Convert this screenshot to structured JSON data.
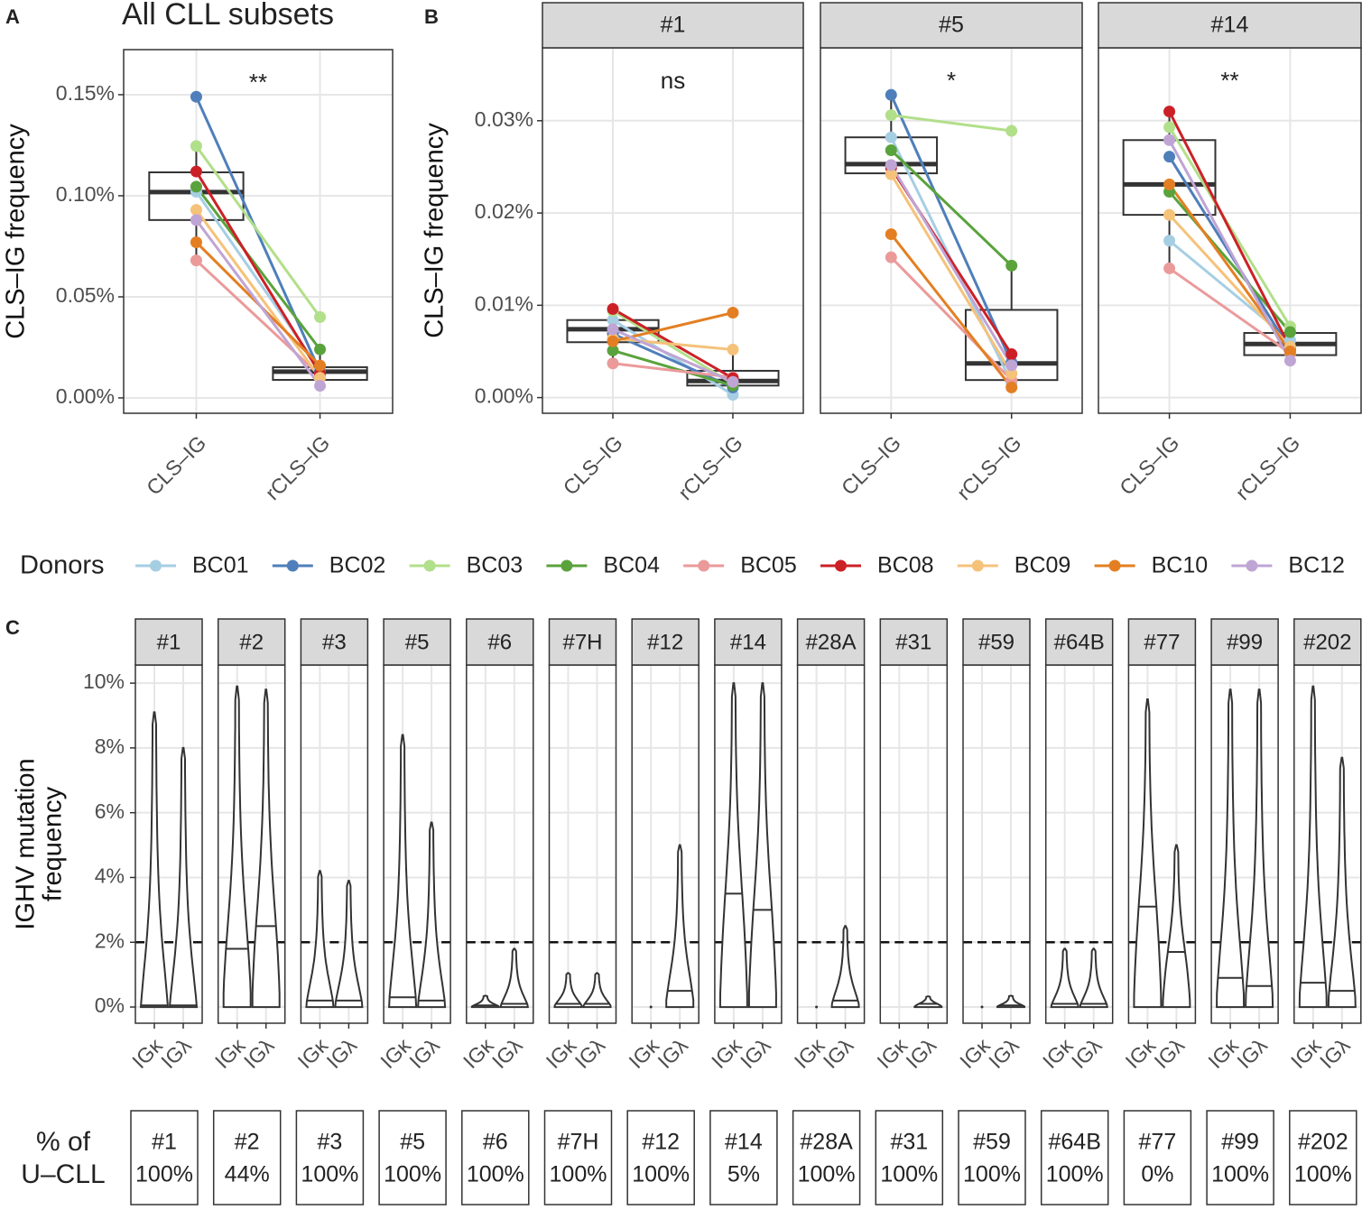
{
  "panel_labels": [
    "A",
    "B",
    "C"
  ],
  "legend": {
    "title": "Donors"
  },
  "chart_data": [
    {
      "type": "paired-box",
      "title": "All CLL subsets",
      "y_label": "CLS–IG frequency",
      "annotation": "**",
      "categories": [
        "CLS–IG",
        "rCLS–IG"
      ],
      "ylim": [
        -0.0076,
        0.1723
      ],
      "yticks": [
        {
          "value": 0,
          "label": "0.00%"
        },
        {
          "value": 0.05,
          "label": "0.05%"
        },
        {
          "value": 0.1,
          "label": "0.10%"
        },
        {
          "value": 0.15,
          "label": "0.15%"
        }
      ],
      "series": [
        {
          "name": "BC01",
          "color": "#a6cee3",
          "values": [
            0.102,
            0.014
          ]
        },
        {
          "name": "BC02",
          "color": "#4f7fba",
          "values": [
            0.149,
            0.013
          ]
        },
        {
          "name": "BC03",
          "color": "#b2df8a",
          "values": [
            0.1246,
            0.04
          ]
        },
        {
          "name": "BC04",
          "color": "#5aa33c",
          "values": [
            0.1045,
            0.024
          ]
        },
        {
          "name": "BC05",
          "color": "#eb9a9a",
          "values": [
            0.068,
            0.011
          ]
        },
        {
          "name": "BC08",
          "color": "#cc2027",
          "values": [
            0.112,
            0.012
          ]
        },
        {
          "name": "BC09",
          "color": "#f5c27a",
          "values": [
            0.093,
            0.01
          ]
        },
        {
          "name": "BC10",
          "color": "#e37f22",
          "values": [
            0.077,
            0.016
          ]
        },
        {
          "name": "BC12",
          "color": "#bfa5d4",
          "values": [
            0.088,
            0.006
          ]
        }
      ],
      "boxes": [
        {
          "whisker_low": 0.068,
          "q1": 0.088,
          "median": 0.1018,
          "q3": 0.1116,
          "whisker_high": 0.1246
        },
        {
          "whisker_low": 0.006,
          "q1": 0.0089,
          "median": 0.013,
          "q3": 0.0152,
          "whisker_high": 0.024
        }
      ]
    },
    {
      "type": "paired-box",
      "facet": "#1",
      "y_label": "CLS–IG frequency",
      "annotation": "ns",
      "categories": [
        "CLS–IG",
        "rCLS–IG"
      ],
      "ylim": [
        -0.0017,
        0.0379
      ],
      "yticks": [
        {
          "value": 0,
          "label": "0.00%"
        },
        {
          "value": 0.01,
          "label": "0.01%"
        },
        {
          "value": 0.02,
          "label": "0.02%"
        },
        {
          "value": 0.03,
          "label": "0.03%"
        }
      ],
      "series": [
        {
          "values": [
            0.0084,
            0.0003
          ]
        },
        {
          "values": [
            0.0069,
            0.0011
          ]
        },
        {
          "values": [
            0.0094,
            0.0015
          ]
        },
        {
          "values": [
            0.0051,
            0.0013
          ]
        },
        {
          "values": [
            0.0037,
            0.0022
          ]
        },
        {
          "values": [
            0.0096,
            0.0021
          ]
        },
        {
          "values": [
            0.0064,
            0.0052
          ]
        },
        {
          "values": [
            0.0061,
            0.0092
          ]
        },
        {
          "values": [
            0.0074,
            0.0017
          ]
        }
      ],
      "boxes": [
        {
          "whisker_low": 0.0037,
          "q1": 0.006,
          "median": 0.0074,
          "q3": 0.0084,
          "whisker_high": 0.0096
        },
        {
          "whisker_low": 0.0003,
          "q1": 0.0013,
          "median": 0.0018,
          "q3": 0.0029,
          "whisker_high": 0.0052
        }
      ]
    },
    {
      "type": "paired-box",
      "facet": "#5",
      "annotation": "*",
      "categories": [
        "CLS–IG",
        "rCLS–IG"
      ],
      "ylim": [
        -0.0017,
        0.0379
      ],
      "yticks": [
        0,
        0.01,
        0.02,
        0.03
      ],
      "series": [
        {
          "values": [
            0.0282,
            0.0016
          ]
        },
        {
          "values": [
            0.0328,
            0.0038
          ]
        },
        {
          "values": [
            0.0306,
            0.0289
          ]
        },
        {
          "values": [
            0.0268,
            0.0143
          ]
        },
        {
          "values": [
            0.0152,
            0.0019
          ]
        },
        {
          "values": [
            0.0249,
            0.0047
          ]
        },
        {
          "values": [
            0.0242,
            0.0026
          ]
        },
        {
          "values": [
            0.0177,
            0.0011
          ]
        },
        {
          "values": [
            0.0252,
            0.0035
          ]
        }
      ],
      "boxes": [
        {
          "whisker_low": 0.0242,
          "q1": 0.0243,
          "median": 0.0253,
          "q3": 0.0282,
          "whisker_high": 0.0328
        },
        {
          "whisker_low": 0.0011,
          "q1": 0.0019,
          "median": 0.0037,
          "q3": 0.0095,
          "whisker_high": 0.0143
        }
      ]
    },
    {
      "type": "paired-box",
      "facet": "#14",
      "annotation": "**",
      "categories": [
        "CLS–IG",
        "rCLS–IG"
      ],
      "ylim": [
        -0.0017,
        0.0379
      ],
      "yticks": [
        0,
        0.01,
        0.02,
        0.03
      ],
      "series": [
        {
          "values": [
            0.017,
            0.0062
          ]
        },
        {
          "values": [
            0.0261,
            0.0052
          ]
        },
        {
          "values": [
            0.0293,
            0.0077
          ]
        },
        {
          "values": [
            0.0223,
            0.0071
          ]
        },
        {
          "values": [
            0.014,
            0.0048
          ]
        },
        {
          "values": [
            0.031,
            0.0054
          ]
        },
        {
          "values": [
            0.0198,
            0.0055
          ]
        },
        {
          "values": [
            0.0231,
            0.005
          ]
        },
        {
          "values": [
            0.0279,
            0.004
          ]
        }
      ],
      "boxes": [
        {
          "whisker_low": 0.014,
          "q1": 0.0198,
          "median": 0.0231,
          "q3": 0.0279,
          "whisker_high": 0.031
        },
        {
          "whisker_low": 0.004,
          "q1": 0.0046,
          "median": 0.0058,
          "q3": 0.007,
          "whisker_high": 0.0077
        }
      ]
    },
    {
      "type": "violin",
      "y_label": [
        "IGHV mutation",
        "frequency"
      ],
      "categories": [
        "IGκ",
        "IGλ"
      ],
      "ylim": [
        -0.5,
        10.56
      ],
      "yticks": [
        {
          "value": 0,
          "label": "0%"
        },
        {
          "value": 2,
          "label": "2%"
        },
        {
          "value": 4,
          "label": "4%"
        },
        {
          "value": 6,
          "label": "6%"
        },
        {
          "value": 8,
          "label": "8%"
        },
        {
          "value": 10,
          "label": "10%"
        }
      ],
      "threshold": 2,
      "facets": [
        {
          "label": "#1",
          "violins": [
            {
              "max": 9.1,
              "median": 0.05
            },
            {
              "max": 8.0,
              "median": 0.05
            }
          ]
        },
        {
          "label": "#2",
          "violins": [
            {
              "max": 9.9,
              "median": 1.8
            },
            {
              "max": 9.8,
              "median": 2.5
            }
          ]
        },
        {
          "label": "#3",
          "violins": [
            {
              "max": 4.2,
              "median": 0.2
            },
            {
              "max": 3.9,
              "median": 0.2
            }
          ]
        },
        {
          "label": "#5",
          "violins": [
            {
              "max": 8.4,
              "median": 0.3
            },
            {
              "max": 5.7,
              "median": 0.2
            }
          ]
        },
        {
          "label": "#6",
          "violins": [
            {
              "max": 0.35,
              "median": 0.05
            },
            {
              "max": 1.8,
              "median": 0.1
            }
          ]
        },
        {
          "label": "#7H",
          "violins": [
            {
              "max": 1.05,
              "median": 0.1
            },
            {
              "max": 1.05,
              "median": 0.1
            }
          ]
        },
        {
          "label": "#12",
          "violins": [
            {
              "max": 0,
              "median": 0
            },
            {
              "max": 5.0,
              "median": 0.5
            }
          ]
        },
        {
          "label": "#14",
          "violins": [
            {
              "max": 10.0,
              "median": 3.5
            },
            {
              "max": 10.0,
              "median": 3.0
            }
          ]
        },
        {
          "label": "#28A",
          "violins": [
            {
              "max": 0,
              "median": 0
            },
            {
              "max": 2.5,
              "median": 0.2
            }
          ]
        },
        {
          "label": "#31",
          "violins": [
            null,
            {
              "max": 0.33,
              "median": 0.1
            }
          ]
        },
        {
          "label": "#59",
          "violins": [
            {
              "max": 0,
              "median": 0
            },
            {
              "max": 0.35,
              "median": 0.05
            }
          ]
        },
        {
          "label": "#64B",
          "violins": [
            {
              "max": 1.8,
              "median": 0.1
            },
            {
              "max": 1.8,
              "median": 0.1
            }
          ]
        },
        {
          "label": "#77",
          "violins": [
            {
              "max": 9.5,
              "median": 3.1
            },
            {
              "max": 5.0,
              "median": 1.7
            }
          ]
        },
        {
          "label": "#99",
          "violins": [
            {
              "max": 9.8,
              "median": 0.9
            },
            {
              "max": 9.8,
              "median": 0.65
            }
          ]
        },
        {
          "label": "#202",
          "violins": [
            {
              "max": 9.9,
              "median": 0.75
            },
            {
              "max": 7.7,
              "median": 0.5
            }
          ]
        }
      ]
    }
  ],
  "table": {
    "label": [
      "% of",
      "U–CLL"
    ],
    "cells": [
      {
        "subset": "#1",
        "value": "100%"
      },
      {
        "subset": "#2",
        "value": "44%"
      },
      {
        "subset": "#3",
        "value": "100%"
      },
      {
        "subset": "#5",
        "value": "100%"
      },
      {
        "subset": "#6",
        "value": "100%"
      },
      {
        "subset": "#7H",
        "value": "100%"
      },
      {
        "subset": "#12",
        "value": "100%"
      },
      {
        "subset": "#14",
        "value": "5%"
      },
      {
        "subset": "#28A",
        "value": "100%"
      },
      {
        "subset": "#31",
        "value": "100%"
      },
      {
        "subset": "#59",
        "value": "100%"
      },
      {
        "subset": "#64B",
        "value": "100%"
      },
      {
        "subset": "#77",
        "value": "0%"
      },
      {
        "subset": "#99",
        "value": "100%"
      },
      {
        "subset": "#202",
        "value": "100%"
      }
    ]
  }
}
